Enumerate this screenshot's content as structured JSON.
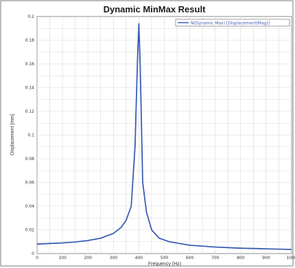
{
  "chart_data": {
    "type": "line",
    "title": "Dynamic MinMax Result",
    "xlabel": "Frequency (Hz)",
    "ylabel": "Displacement [mm]",
    "xlim": [
      0,
      1000
    ],
    "ylim": [
      0,
      0.2
    ],
    "x_ticks": [
      "0",
      "100",
      "200",
      "300",
      "400",
      "500",
      "600",
      "700",
      "800",
      "900",
      "1000"
    ],
    "y_ticks": [
      "0",
      "0.02",
      "0.04",
      "0.06",
      "0.08",
      "0.1",
      "0.12",
      "0.14",
      "0.16",
      "0.18",
      "0.2"
    ],
    "grid": true,
    "legend_position": "top-right",
    "series": [
      {
        "name": "N(Dynamic Max) [Displacement(Mag)]",
        "color": "#3a5db4",
        "x": [
          0,
          50,
          100,
          150,
          200,
          250,
          300,
          330,
          350,
          370,
          385,
          395,
          400,
          405,
          415,
          430,
          450,
          480,
          520,
          600,
          700,
          800,
          900,
          1000
        ],
        "y": [
          0.008,
          0.0085,
          0.009,
          0.0098,
          0.011,
          0.013,
          0.017,
          0.022,
          0.028,
          0.04,
          0.09,
          0.165,
          0.194,
          0.16,
          0.06,
          0.035,
          0.02,
          0.013,
          0.01,
          0.007,
          0.0055,
          0.0045,
          0.004,
          0.0035
        ]
      }
    ]
  }
}
